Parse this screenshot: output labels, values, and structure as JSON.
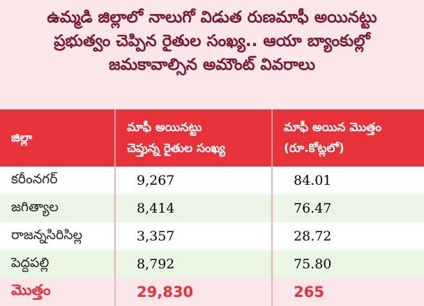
{
  "title_lines": [
    "ఉమ్మడి జిల్లాలో నాలుగో విడుత రుణమాఫీ అయినట్టు",
    "ప్రభుత్వం చెప్పిన రైతుల సంఖ్య.. ఆయా బ్యాంకుల్లో",
    "జమకావాల్సిన అమౌంట్ వివరాలు"
  ],
  "table": {
    "headers": [
      [
        "జిల్లా"
      ],
      [
        "మాఫీ అయినట్టు",
        "చెప్తున్న రైతుల సంఖ్య"
      ],
      [
        "మాఫీ అయిన మొత్తం",
        "(రూ.కోట్లలో)"
      ]
    ],
    "rows": [
      {
        "district": "కరీంనగర్",
        "farmers": "9,267",
        "amount": "84.01"
      },
      {
        "district": "జగిత్యాల",
        "farmers": "8,414",
        "amount": "76.47"
      },
      {
        "district": "రాజన్నసిరిసిల్ల",
        "farmers": "3,357",
        "amount": "28.72"
      },
      {
        "district": "పెద్దపల్లి",
        "farmers": "8,792",
        "amount": "75.80"
      }
    ],
    "total": {
      "label": "మొత్తం",
      "farmers": "29,830",
      "amount": "265"
    }
  },
  "colors": {
    "background": "#fbe6ea",
    "title_text": "#7a1a33",
    "header_bg": "#e8323a",
    "row_alt_bg": "#eaf5e4",
    "total_text": "#e8323a"
  }
}
